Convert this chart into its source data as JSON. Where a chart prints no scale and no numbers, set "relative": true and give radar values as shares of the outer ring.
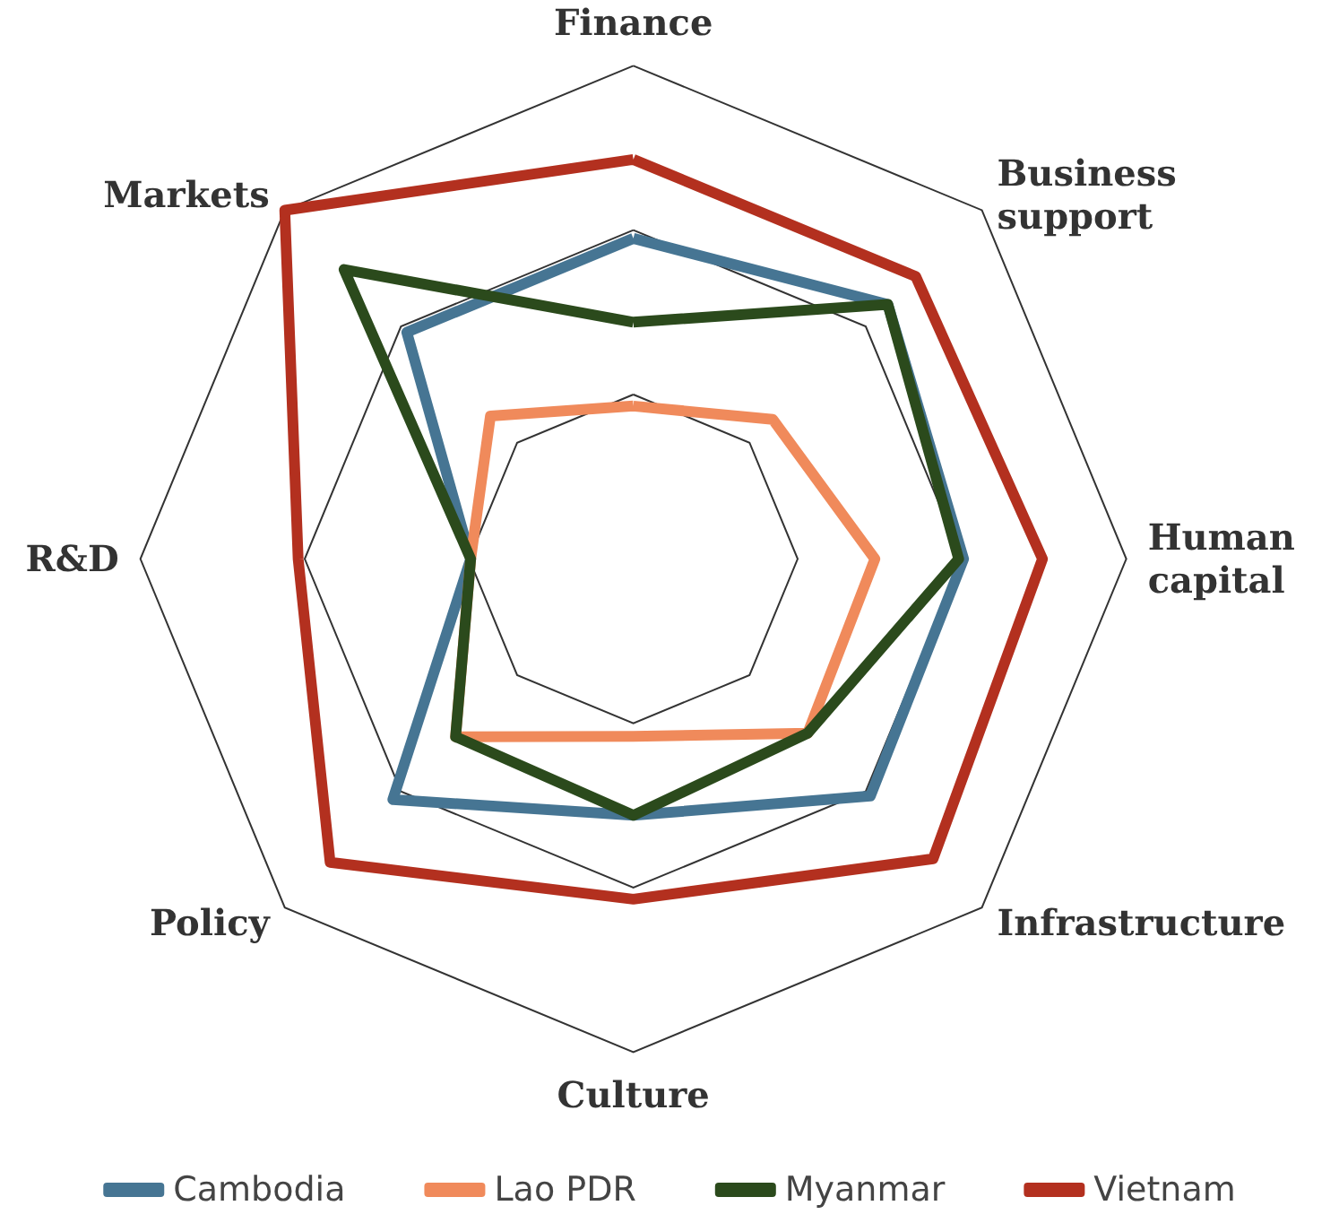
{
  "chart_data": {
    "type": "radar",
    "relative": true,
    "categories": [
      "Finance",
      "Business support",
      "Human capital",
      "Infrastructure",
      "Culture",
      "Policy",
      "R&D",
      "Markets"
    ],
    "series": [
      {
        "name": "Cambodia",
        "color": "#467593",
        "values": [
          0.65,
          0.73,
          0.67,
          0.68,
          0.52,
          0.69,
          0.33,
          0.65
        ]
      },
      {
        "name": "Lao PDR",
        "color": "#f08a5b",
        "values": [
          0.31,
          0.4,
          0.49,
          0.5,
          0.36,
          0.51,
          0.33,
          0.41
        ]
      },
      {
        "name": "Myanmar",
        "color": "#2b4a1c",
        "values": [
          0.48,
          0.73,
          0.66,
          0.5,
          0.52,
          0.51,
          0.33,
          0.83
        ]
      },
      {
        "name": "Vietnam",
        "color": "#b3301f",
        "values": [
          0.81,
          0.81,
          0.83,
          0.86,
          0.69,
          0.87,
          0.68,
          1
        ]
      }
    ],
    "legend": "bottom",
    "marker": "none",
    "line_style": "solid",
    "grid": true
  }
}
